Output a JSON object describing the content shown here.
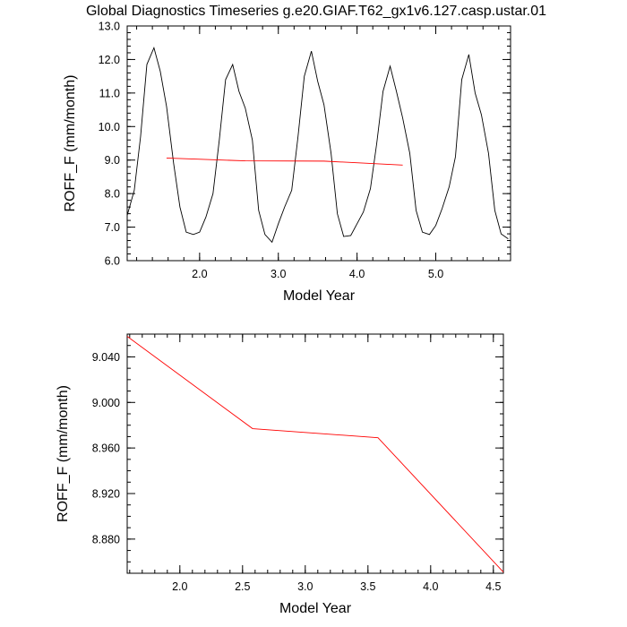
{
  "title": "Global Diagnostics Timeseries g.e20.GIAF.T62_gx1v6.127.casp.ustar.01",
  "chart_data": [
    {
      "type": "line",
      "title": "Global Diagnostics Timeseries g.e20.GIAF.T62_gx1v6.127.casp.ustar.01",
      "xlabel": "Model Year",
      "ylabel": "ROFF_F (mm/month)",
      "xlim": [
        1.08,
        5.95
      ],
      "ylim": [
        6.0,
        13.0
      ],
      "xticks": [
        2.0,
        3.0,
        4.0,
        5.0
      ],
      "xtick_labels": [
        "2.0",
        "3.0",
        "4.0",
        "5.0"
      ],
      "yticks": [
        6.0,
        7.0,
        8.0,
        9.0,
        10.0,
        11.0,
        12.0,
        13.0
      ],
      "ytick_labels": [
        "6.0",
        "7.0",
        "8.0",
        "9.0",
        "10.0",
        "11.0",
        "12.0",
        "13.0"
      ],
      "grid": false,
      "series": [
        {
          "color": "#000000",
          "x": [
            1.08,
            1.17,
            1.25,
            1.33,
            1.42,
            1.5,
            1.58,
            1.67,
            1.75,
            1.83,
            1.92,
            2.0,
            2.08,
            2.17,
            2.25,
            2.33,
            2.42,
            2.5,
            2.58,
            2.67,
            2.75,
            2.83,
            2.92,
            3.0,
            3.08,
            3.17,
            3.25,
            3.33,
            3.42,
            3.5,
            3.58,
            3.67,
            3.75,
            3.83,
            3.92,
            4.0,
            4.08,
            4.17,
            4.25,
            4.33,
            4.42,
            4.5,
            4.58,
            4.67,
            4.75,
            4.83,
            4.92,
            5.0,
            5.08,
            5.17,
            5.25,
            5.33,
            5.42,
            5.5,
            5.58,
            5.67,
            5.75,
            5.83,
            5.92
          ],
          "y": [
            7.35,
            8.1,
            9.7,
            11.85,
            12.35,
            11.65,
            10.6,
            8.9,
            7.6,
            6.85,
            6.78,
            6.85,
            7.3,
            8.0,
            9.6,
            11.4,
            11.85,
            11.05,
            10.55,
            9.6,
            7.5,
            6.78,
            6.55,
            7.1,
            7.6,
            8.1,
            9.7,
            11.5,
            12.25,
            11.35,
            10.65,
            9.2,
            7.4,
            6.72,
            6.75,
            7.1,
            7.45,
            8.15,
            9.5,
            11.05,
            11.8,
            11.05,
            10.25,
            9.2,
            7.5,
            6.85,
            6.78,
            7.05,
            7.55,
            8.2,
            9.1,
            11.4,
            12.15,
            11.0,
            10.35,
            9.2,
            7.5,
            6.8,
            6.65
          ]
        },
        {
          "color": "#ff0000",
          "x": [
            1.58,
            2.58,
            3.58,
            4.58
          ],
          "y": [
            9.06,
            8.977,
            8.969,
            8.85
          ]
        }
      ]
    },
    {
      "type": "line",
      "xlabel": "Model Year",
      "ylabel": "ROFF_F (mm/month)",
      "xlim": [
        1.58,
        4.58
      ],
      "ylim": [
        8.85,
        9.06
      ],
      "xticks": [
        2.0,
        2.5,
        3.0,
        3.5,
        4.0,
        4.5
      ],
      "xtick_labels": [
        "2.0",
        "2.5",
        "3.0",
        "3.5",
        "4.0",
        "4.5"
      ],
      "yticks": [
        8.88,
        8.92,
        8.96,
        9.0,
        9.04
      ],
      "ytick_labels": [
        "8.880",
        "8.920",
        "8.960",
        "9.000",
        "9.040"
      ],
      "grid": false,
      "series": [
        {
          "color": "#ff0000",
          "x": [
            1.58,
            2.58,
            3.58,
            4.58
          ],
          "y": [
            9.058,
            8.977,
            8.969,
            8.851
          ]
        }
      ]
    }
  ]
}
